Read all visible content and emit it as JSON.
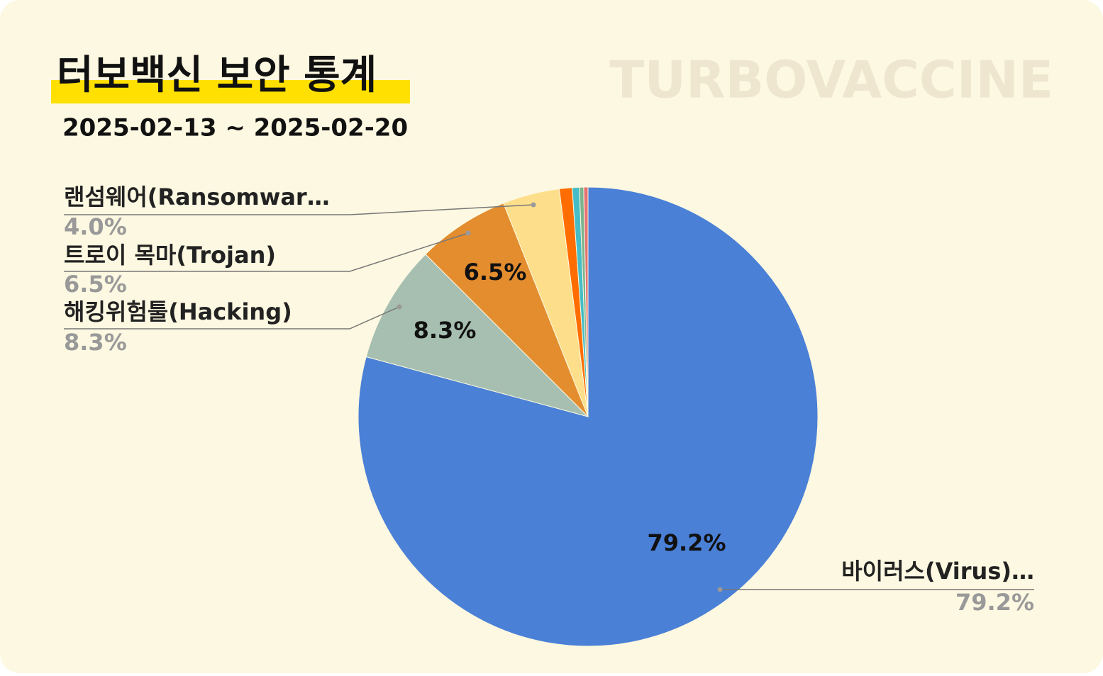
{
  "chart_data": {
    "type": "pie",
    "title": "터보백신 보안 통계",
    "subtitle": "2025-02-13 ~ 2025-02-20",
    "watermark": "TURBOVACCINE",
    "categories": [
      "바이러스(Virus)…",
      "해킹위험툴(Hacking)",
      "트로이 목마(Trojan)",
      "랜섬웨어(Ransomwar…",
      null,
      null,
      null,
      null
    ],
    "values": [
      79.2,
      8.3,
      6.5,
      4.0,
      0.9,
      0.5,
      0.3,
      0.3
    ],
    "value_labels": [
      "79.2%",
      "8.3%",
      "6.5%",
      "4.0%",
      null,
      null,
      null,
      null
    ],
    "colors": [
      "#4a80d6",
      "#a6bfb0",
      "#e38d2f",
      "#fddf8b",
      "#ff6d01",
      "#46bdc6",
      "#7cb48f",
      "#e57373"
    ]
  }
}
